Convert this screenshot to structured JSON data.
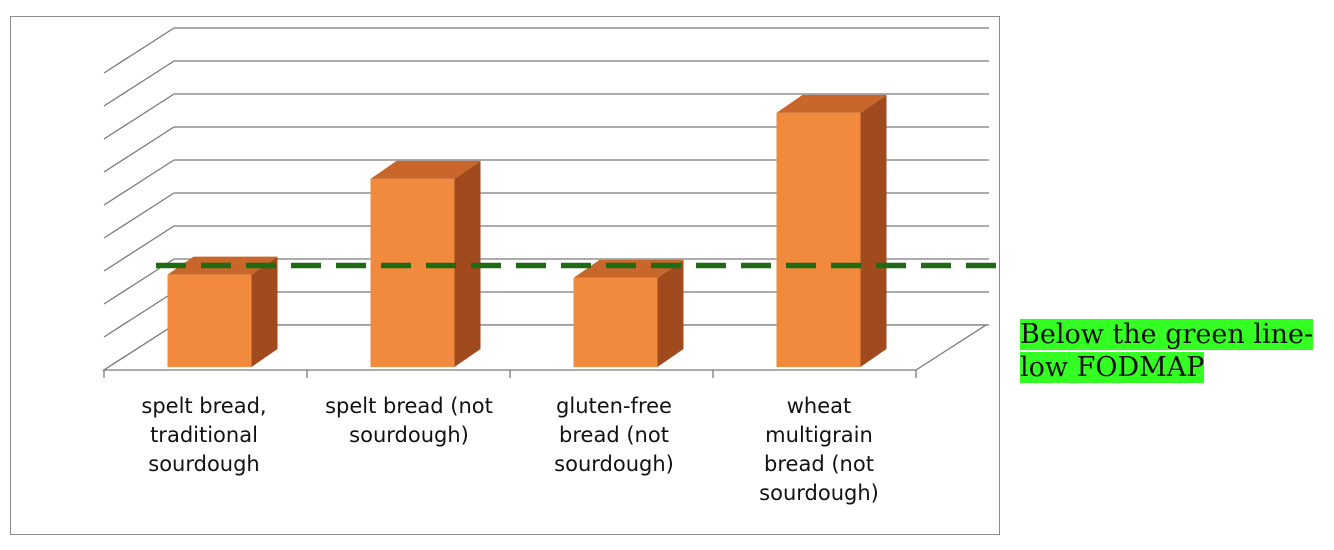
{
  "chart_data": {
    "type": "bar",
    "categories": [
      "spelt bread, traditional sourdough",
      "spelt bread (not sourdough)",
      "gluten-free bread (not sourdough)",
      "wheat multigrain bread (not sourdough)"
    ],
    "category_lines": [
      [
        "spelt bread,",
        "traditional",
        "sourdough"
      ],
      [
        "spelt bread (not",
        "sourdough)"
      ],
      [
        "gluten-free",
        "bread (not",
        "sourdough)"
      ],
      [
        "wheat",
        "multigrain",
        "bread (not",
        "sourdough)"
      ]
    ],
    "values": [
      2.8,
      5.7,
      2.7,
      7.7
    ],
    "ylim": [
      0,
      9
    ],
    "threshold": 3.5,
    "grid": true,
    "colors": {
      "bar_front": "#f28a3e",
      "bar_side": "#a04a1d",
      "bar_top": "#c8662b",
      "threshold_line": "#1e6b14"
    }
  },
  "note": {
    "line1": "Below the green line-",
    "line2": "low FODMAP",
    "highlight_color": "#33ff22"
  }
}
